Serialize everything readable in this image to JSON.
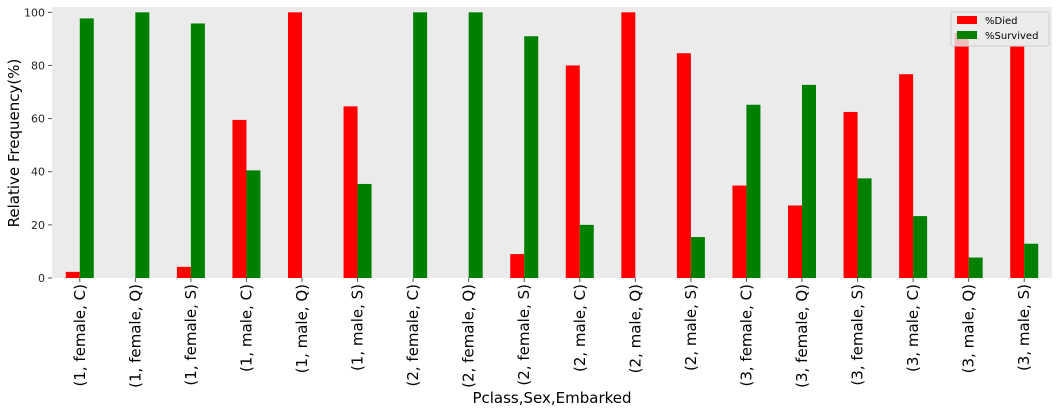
{
  "chart_data": {
    "type": "bar",
    "xlabel": "Pclass,Sex,Embarked",
    "ylabel": "Relative Frequency(%)",
    "ylim": [
      0,
      102
    ],
    "yticks": [
      0,
      20,
      40,
      60,
      80,
      100
    ],
    "grid": false,
    "legend_position": "top-right",
    "background_color": "#ebebeb",
    "categories": [
      "(1, female, C)",
      "(1, female, Q)",
      "(1, female, S)",
      "(1, male, C)",
      "(1, male, Q)",
      "(1, male, S)",
      "(2, female, C)",
      "(2, female, Q)",
      "(2, female, S)",
      "(2, male, C)",
      "(2, male, Q)",
      "(2, male, S)",
      "(3, female, C)",
      "(3, female, Q)",
      "(3, female, S)",
      "(3, male, C)",
      "(3, male, Q)",
      "(3, male, S)"
    ],
    "series": [
      {
        "name": "%Died",
        "color": "#ff0000",
        "values": [
          2.3,
          0,
          4.2,
          59.5,
          100,
          64.6,
          0,
          0,
          9.0,
          80.0,
          100,
          84.6,
          34.8,
          27.3,
          62.5,
          76.7,
          92.3,
          87.1
        ]
      },
      {
        "name": "%Survived",
        "color": "#008000",
        "values": [
          97.7,
          100,
          95.8,
          40.5,
          0,
          35.4,
          100,
          100,
          91.0,
          20.0,
          0,
          15.4,
          65.2,
          72.7,
          37.5,
          23.3,
          7.7,
          12.9
        ]
      }
    ]
  }
}
